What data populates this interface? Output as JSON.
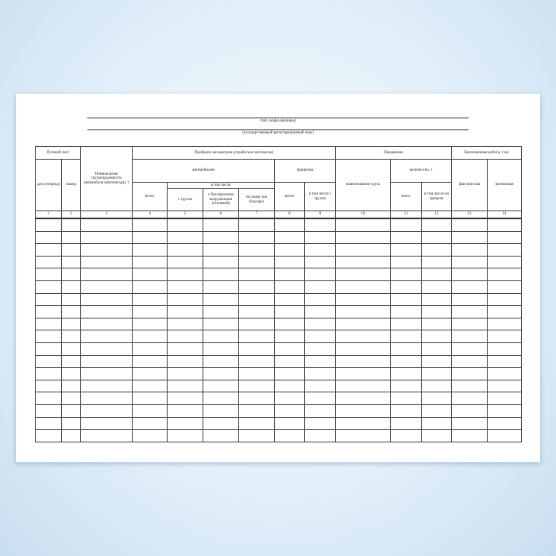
{
  "top_fields": [
    {
      "caption": "(тип, марка машины)"
    },
    {
      "caption": "(государственный регистрационный знак)"
    }
  ],
  "header": {
    "waybill": "Путевой лист",
    "date": "дата (период)",
    "number": "номер",
    "capacity": "Номинальная грузоподъемность автомобиля (автопоезда), т",
    "km_passed": "Пройдено километров (отработано моточасов)",
    "by_car": "автомобилем",
    "by_trailer": "прицепом",
    "total": "всего",
    "including": "в том числе",
    "with_cargo": "с грузом",
    "with_towed": "с буксируемым вооружением (техникой)",
    "afloat": "на плаву (на буксире)",
    "trailer_with_cargo": "в том числе с грузом",
    "transported": "Перевезено",
    "cargo_name": "наименование груза",
    "quantity": "количество, т",
    "on_trailer": "в том числе на прицепе",
    "work_done": "Выполненная работа, т км",
    "actual": "фактическая",
    "possible": "возможная"
  },
  "column_numbers": [
    "1",
    "2",
    "3",
    "4",
    "5",
    "6",
    "7",
    "8",
    "9",
    "10",
    "11",
    "12",
    "13",
    "14"
  ],
  "empty_rows": 18
}
